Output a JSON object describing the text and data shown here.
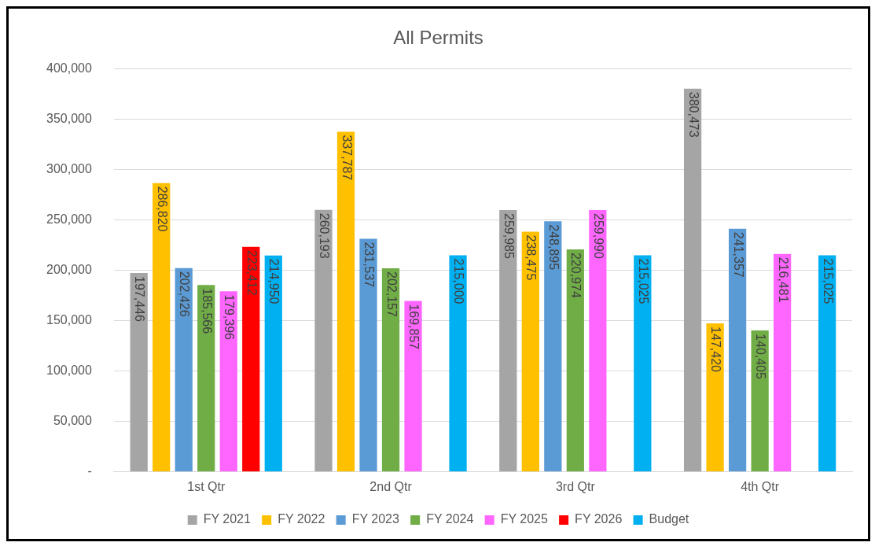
{
  "chart_data": {
    "type": "bar",
    "title": "All Permits",
    "categories": [
      "1st Qtr",
      "2nd Qtr",
      "3rd Qtr",
      "4th Qtr"
    ],
    "series": [
      {
        "name": "FY 2021",
        "color": "#a5a5a5",
        "values": [
          197446,
          260193,
          259985,
          380473
        ],
        "value_labels": [
          "197,446",
          "260,193",
          "259,985",
          "380,473"
        ]
      },
      {
        "name": "FY 2022",
        "color": "#ffc000",
        "values": [
          286820,
          337787,
          238475,
          147420
        ],
        "value_labels": [
          "286,820",
          "337,787",
          "238,475",
          "147,420"
        ]
      },
      {
        "name": "FY 2023",
        "color": "#5b9bd5",
        "values": [
          202426,
          231537,
          248895,
          241357
        ],
        "value_labels": [
          "202,426",
          "231,537",
          "248,895",
          "241,357"
        ]
      },
      {
        "name": "FY 2024",
        "color": "#70ad47",
        "values": [
          185566,
          202157,
          220974,
          140405
        ],
        "value_labels": [
          "185,566",
          "202,157",
          "220,974",
          "140,405"
        ]
      },
      {
        "name": "FY 2025",
        "color": "#ff66ff",
        "values": [
          179396,
          169857,
          259990,
          216481
        ],
        "value_labels": [
          "179,396",
          "169,857",
          "259,990",
          "216,481"
        ]
      },
      {
        "name": "FY 2026",
        "color": "#ff0000",
        "values": [
          223412,
          null,
          null,
          null
        ],
        "value_labels": [
          "223,412",
          null,
          null,
          null
        ]
      },
      {
        "name": "Budget",
        "color": "#00b0f0",
        "values": [
          214950,
          215000,
          215025,
          215025
        ],
        "value_labels": [
          "214,950",
          "215,000",
          "215,025",
          "215,025"
        ]
      }
    ],
    "ylim": [
      0,
      400000
    ],
    "yticks": [
      {
        "value": 0,
        "label": "-"
      },
      {
        "value": 50000,
        "label": "50,000"
      },
      {
        "value": 100000,
        "label": "100,000"
      },
      {
        "value": 150000,
        "label": "150,000"
      },
      {
        "value": 200000,
        "label": "200,000"
      },
      {
        "value": 250000,
        "label": "250,000"
      },
      {
        "value": 300000,
        "label": "300,000"
      },
      {
        "value": 350000,
        "label": "350,000"
      },
      {
        "value": 400000,
        "label": "400,000"
      }
    ],
    "grid": "y",
    "legend": "bottom"
  }
}
